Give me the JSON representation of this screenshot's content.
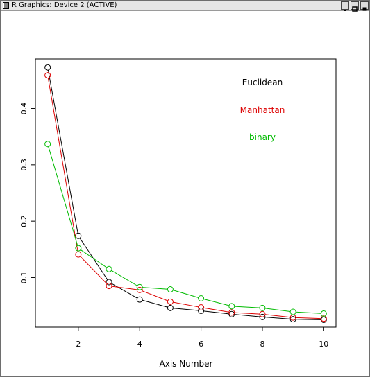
{
  "window": {
    "title": "R Graphics: Device 2 (ACTIVE)",
    "buttons": [
      "minimize-icon",
      "maximize-icon",
      "close-icon"
    ]
  },
  "chart_data": {
    "type": "line",
    "title": "",
    "xlabel": "Axis Number",
    "ylabel": "",
    "x": [
      1,
      2,
      3,
      4,
      5,
      6,
      7,
      8,
      9,
      10
    ],
    "xlim": [
      0.6,
      10.4
    ],
    "ylim": [
      0.012,
      0.488
    ],
    "xticks": [
      2,
      4,
      6,
      8,
      10
    ],
    "yticks": [
      0.1,
      0.2,
      0.3,
      0.4
    ],
    "ytick_labels": [
      "0.1",
      "0.2",
      "0.3",
      "0.4"
    ],
    "xtick_labels": [
      "2",
      "4",
      "6",
      "8",
      "10"
    ],
    "grid": false,
    "legend_position": "top-right",
    "series": [
      {
        "name": "Euclidean",
        "color": "#000000",
        "values": [
          0.473,
          0.174,
          0.092,
          0.061,
          0.046,
          0.041,
          0.035,
          0.03,
          0.026,
          0.025
        ]
      },
      {
        "name": "Manhattan",
        "color": "#dd0000",
        "values": [
          0.459,
          0.141,
          0.085,
          0.078,
          0.057,
          0.047,
          0.038,
          0.035,
          0.029,
          0.027
        ]
      },
      {
        "name": "binary",
        "color": "#00bb00",
        "values": [
          0.337,
          0.152,
          0.115,
          0.083,
          0.079,
          0.063,
          0.049,
          0.046,
          0.039,
          0.036
        ]
      }
    ]
  }
}
